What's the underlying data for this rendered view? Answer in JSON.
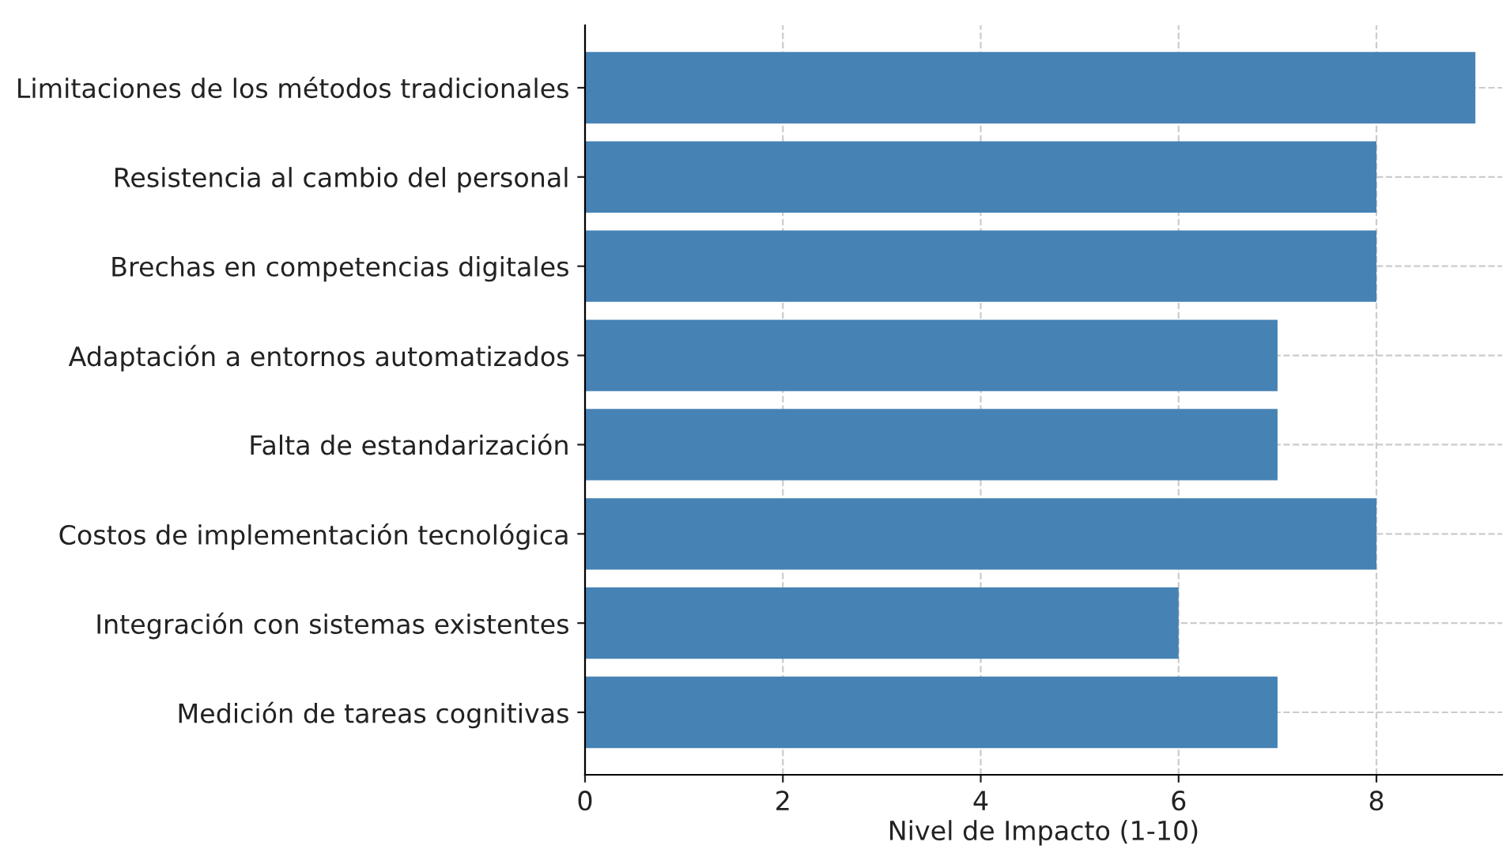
{
  "chart_data": {
    "type": "bar",
    "orientation": "horizontal",
    "xlabel": "Nivel de Impacto (1-10)",
    "categories": [
      "Limitaciones de los métodos tradicionales",
      "Resistencia al cambio del personal",
      "Brechas en competencias digitales",
      "Adaptación a entornos automatizados",
      "Falta de estandarización",
      "Costos de implementación tecnológica",
      "Integración con sistemas existentes",
      "Medición de tareas cognitivas"
    ],
    "values": [
      9,
      8,
      8,
      7,
      7,
      8,
      6,
      7
    ],
    "color": "#4682b4",
    "xlim": [
      0,
      9.27
    ],
    "xticks": [
      0,
      2,
      4,
      6,
      8
    ],
    "grid": true
  }
}
